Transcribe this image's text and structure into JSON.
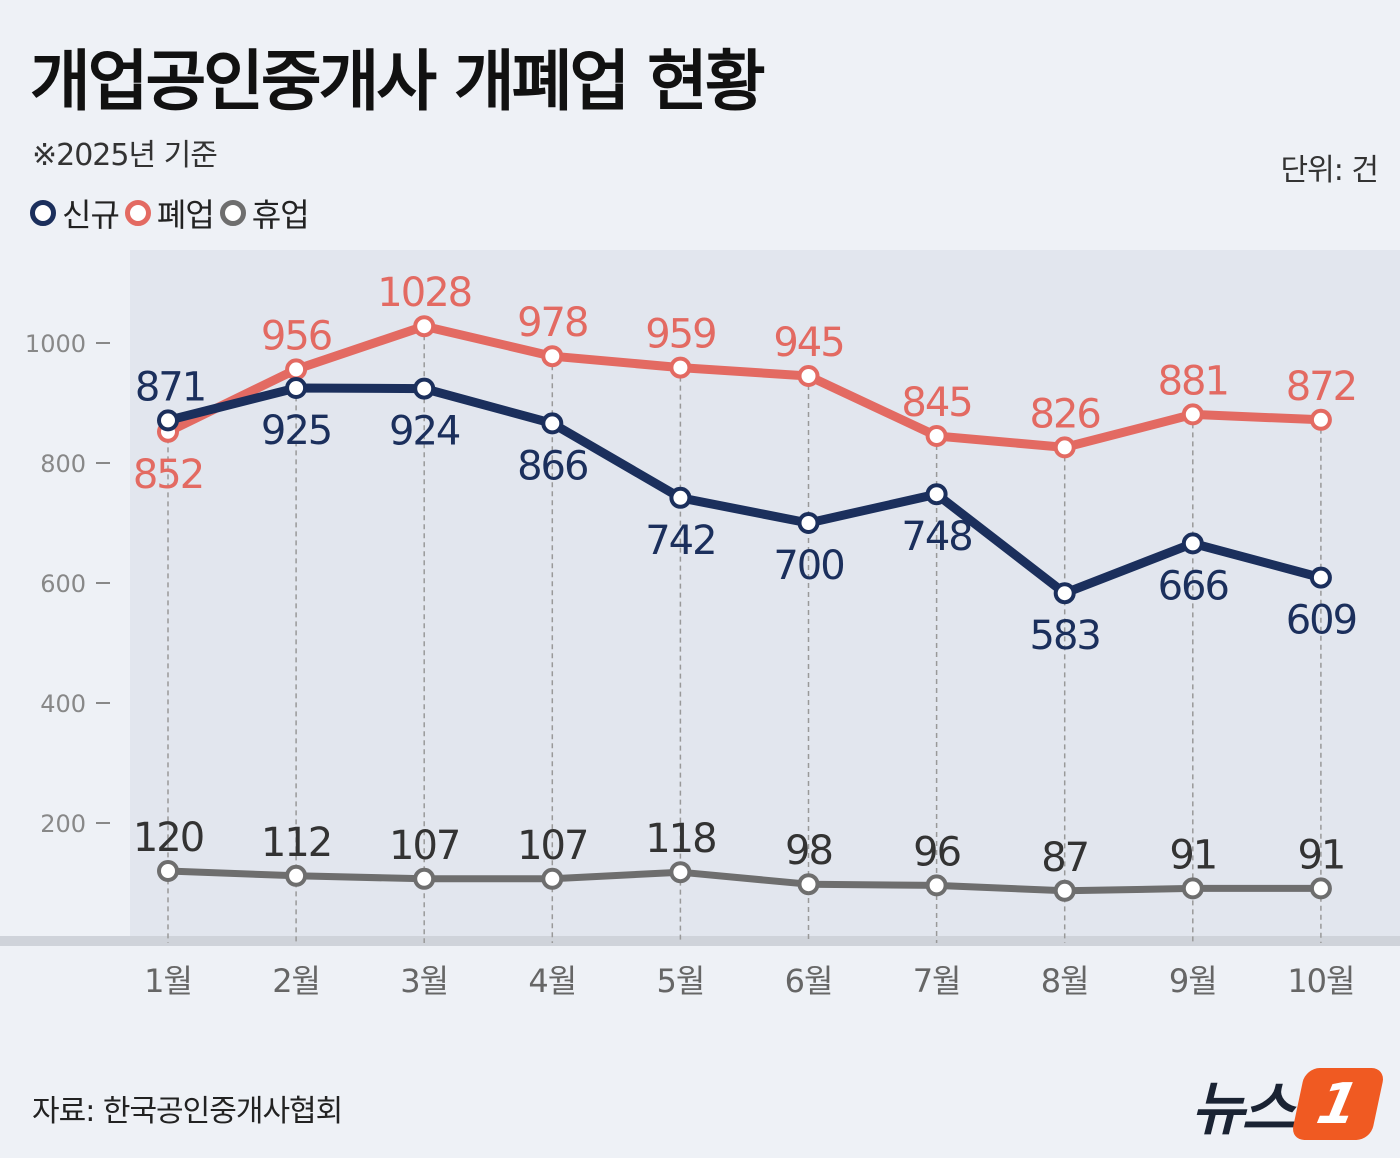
{
  "title": "개업공인중개사 개폐업 현황",
  "subtitle": "※2025년 기준",
  "unit": "단위: 건",
  "source": "자료: 한국공인중개사협회",
  "logo": "뉴스1",
  "logo_text": "뉴스",
  "logo_mark": "1",
  "chart_data": {
    "type": "line",
    "categories": [
      "1월",
      "2월",
      "3월",
      "4월",
      "5월",
      "6월",
      "7월",
      "8월",
      "9월",
      "10월"
    ],
    "ylim": [
      0,
      1000
    ],
    "yticks": [
      200,
      400,
      600,
      800,
      1000
    ],
    "grid": false,
    "legend_position": "top-left",
    "series": [
      {
        "name": "신규",
        "color": "#1b2f5c",
        "values": [
          871,
          925,
          924,
          866,
          742,
          700,
          748,
          583,
          666,
          609
        ]
      },
      {
        "name": "폐업",
        "color": "#e36a62",
        "values": [
          852,
          956,
          1028,
          978,
          959,
          945,
          845,
          826,
          881,
          872
        ]
      },
      {
        "name": "휴업",
        "color": "#6e6e6e",
        "values": [
          120,
          112,
          107,
          107,
          118,
          98,
          96,
          87,
          91,
          91
        ]
      }
    ]
  }
}
